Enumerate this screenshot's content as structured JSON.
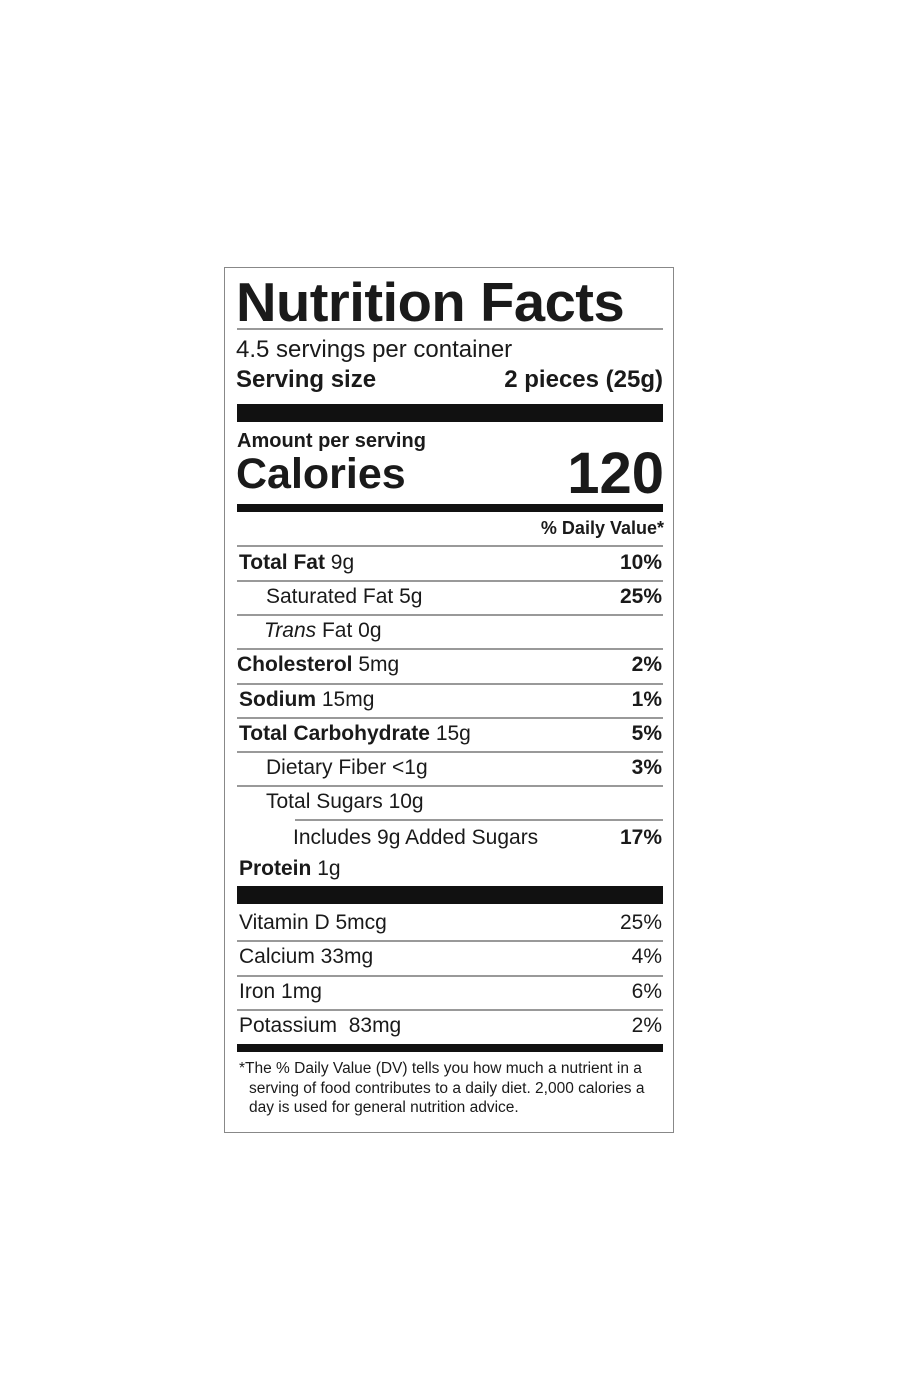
{
  "title": "Nutrition Facts",
  "servings_per_container": "4.5 servings per container",
  "serving_size": {
    "label": "Serving size",
    "value": "2 pieces (25g)"
  },
  "amount_per_serving": "Amount per serving",
  "calories": {
    "label": "Calories",
    "value": "120"
  },
  "daily_value_header": "% Daily Value*",
  "nutrients": [
    {
      "name": "Total Fat",
      "amount": "9g",
      "dv": "10%"
    },
    {
      "name": "Saturated Fat",
      "amount": "5g",
      "dv": "25%"
    },
    {
      "name": "Trans",
      "name2": "Fat",
      "amount": "0g",
      "dv": ""
    },
    {
      "name": "Cholesterol",
      "amount": "5mg",
      "dv": "2%"
    },
    {
      "name": "Sodium",
      "amount": "15mg",
      "dv": "1%"
    },
    {
      "name": "Total Carbohydrate",
      "amount": "15g",
      "dv": "5%"
    },
    {
      "name": "Dietary Fiber",
      "amount": "<1g",
      "dv": "3%"
    },
    {
      "name": "Total Sugars",
      "amount": "10g",
      "dv": ""
    },
    {
      "name": "Includes 9g Added Sugars",
      "amount": "",
      "dv": "17%"
    },
    {
      "name": "Protein",
      "amount": "1g",
      "dv": ""
    }
  ],
  "vitamins": [
    {
      "name": "Vitamin D 5mcg",
      "dv": "25%"
    },
    {
      "name": "Calcium 33mg",
      "dv": "4%"
    },
    {
      "name": "Iron 1mg",
      "dv": "6%"
    },
    {
      "name": "Potassium  83mg",
      "dv": "2%"
    }
  ],
  "footnote": [
    "*The % Daily Value (DV) tells you how much a nutrient in a",
    "serving of food contributes to a daily diet. 2,000 calories a",
    "day is used for general nutrition advice."
  ]
}
